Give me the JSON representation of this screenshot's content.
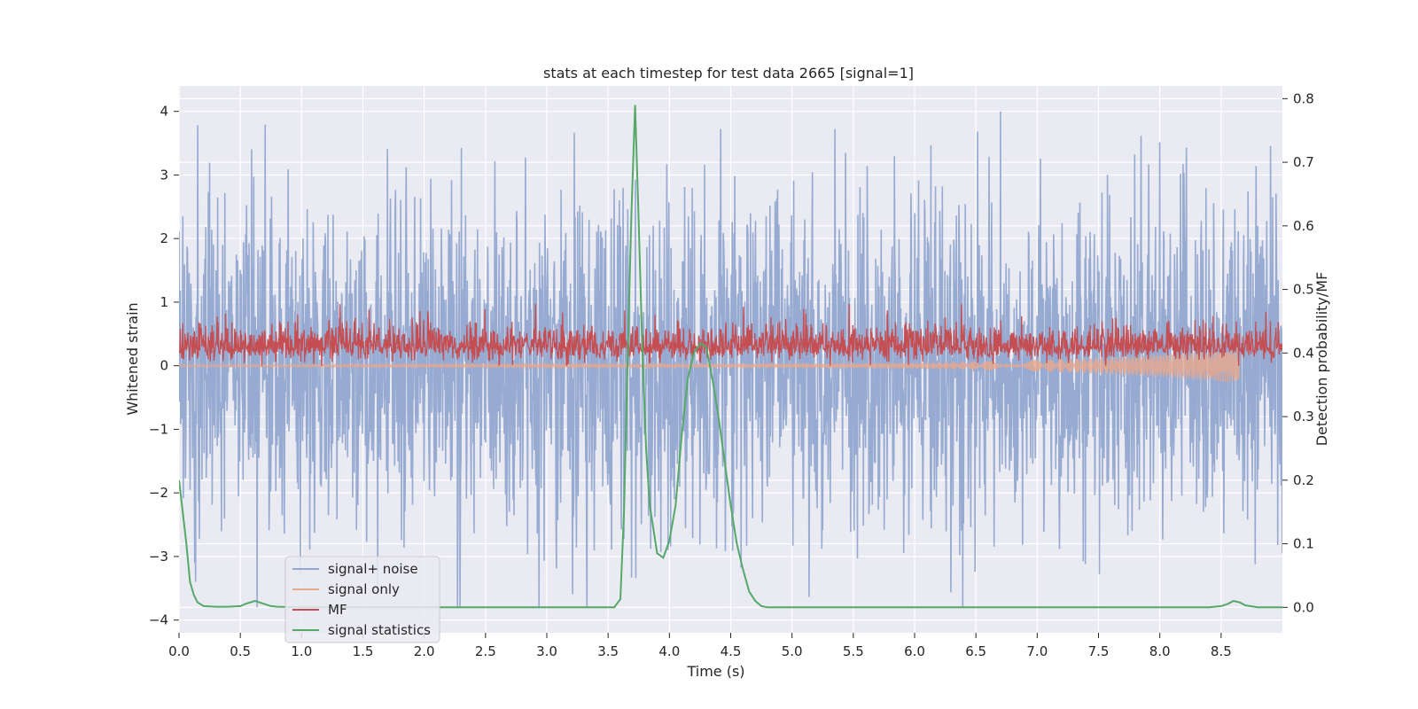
{
  "chart_data": {
    "type": "line",
    "title": "stats at each timestep for test data 2665 [signal=1]",
    "xlabel": "Time (s)",
    "ylabel": "Whitened strain",
    "y2label": "Detection probability/MF",
    "xlim": [
      0.0,
      9.0
    ],
    "ylim": [
      -4.2,
      4.4
    ],
    "y2lim": [
      -0.04,
      0.82
    ],
    "xticks": [
      "0.0",
      "0.5",
      "1.0",
      "1.5",
      "2.0",
      "2.5",
      "3.0",
      "3.5",
      "4.0",
      "4.5",
      "5.0",
      "5.5",
      "6.0",
      "6.5",
      "7.0",
      "7.5",
      "8.0",
      "8.5"
    ],
    "xtick_values": [
      0.0,
      0.5,
      1.0,
      1.5,
      2.0,
      2.5,
      3.0,
      3.5,
      4.0,
      4.5,
      5.0,
      5.5,
      6.0,
      6.5,
      7.0,
      7.5,
      8.0,
      8.5
    ],
    "yticks": [
      "−4",
      "−3",
      "−2",
      "−1",
      "0",
      "1",
      "2",
      "3",
      "4"
    ],
    "ytick_values": [
      -4,
      -3,
      -2,
      -1,
      0,
      1,
      2,
      3,
      4
    ],
    "y2ticks": [
      "0.0",
      "0.1",
      "0.2",
      "0.3",
      "0.4",
      "0.5",
      "0.6",
      "0.7",
      "0.8"
    ],
    "y2tick_values": [
      0.0,
      0.1,
      0.2,
      0.3,
      0.4,
      0.5,
      0.6,
      0.7,
      0.8
    ],
    "legend": {
      "location": "lower-left",
      "entries": [
        "signal+ noise",
        "signal only",
        "MF",
        "signal statistics"
      ]
    },
    "colors": {
      "signal_noise": "#92a6cf",
      "signal_only": "#e8a88c",
      "mf": "#c44e52",
      "stats": "#55a868",
      "plot_bg": "#eaeaf2",
      "grid": "#ffffff"
    },
    "series": [
      {
        "name": "signal+ noise",
        "axis": "left",
        "kind": "noise",
        "sigma": 1.0,
        "x_range": [
          0.0,
          9.0
        ],
        "y_range": [
          -3.8,
          4.0
        ]
      },
      {
        "name": "signal only",
        "axis": "left",
        "kind": "chirp",
        "x_range": [
          0.0,
          8.65
        ],
        "peak_amplitude": 0.25
      },
      {
        "name": "MF",
        "axis": "left",
        "kind": "noise",
        "center": 0.3,
        "x_range": [
          0.0,
          9.0
        ],
        "y_range": [
          0.0,
          0.97
        ]
      },
      {
        "name": "signal statistics",
        "axis": "right",
        "kind": "line",
        "x": [
          0.0,
          0.03,
          0.06,
          0.09,
          0.12,
          0.15,
          0.2,
          0.3,
          0.4,
          0.5,
          0.55,
          0.62,
          0.7,
          0.75,
          0.8,
          1.0,
          1.5,
          2.0,
          2.5,
          3.0,
          3.4,
          3.5,
          3.55,
          3.6,
          3.63,
          3.66,
          3.69,
          3.72,
          3.75,
          3.78,
          3.81,
          3.84,
          3.9,
          3.95,
          4.0,
          4.05,
          4.1,
          4.15,
          4.2,
          4.25,
          4.3,
          4.35,
          4.4,
          4.45,
          4.5,
          4.55,
          4.6,
          4.65,
          4.7,
          4.75,
          4.8,
          5.0,
          5.5,
          6.0,
          6.5,
          7.0,
          7.5,
          8.0,
          8.4,
          8.5,
          8.55,
          8.6,
          8.65,
          8.7,
          8.8,
          9.0
        ],
        "y": [
          0.2,
          0.15,
          0.1,
          0.04,
          0.02,
          0.008,
          0.002,
          0.001,
          0.001,
          0.002,
          0.006,
          0.01,
          0.005,
          0.002,
          0.001,
          0.0,
          0.0,
          0.0,
          0.0,
          0.0,
          0.0,
          0.0,
          0.0,
          0.013,
          0.15,
          0.4,
          0.62,
          0.79,
          0.6,
          0.4,
          0.25,
          0.16,
          0.085,
          0.078,
          0.105,
          0.16,
          0.27,
          0.36,
          0.4,
          0.415,
          0.41,
          0.36,
          0.3,
          0.23,
          0.16,
          0.1,
          0.06,
          0.025,
          0.01,
          0.002,
          0.0,
          0.0,
          0.0,
          0.0,
          0.0,
          0.0,
          0.0,
          0.0,
          0.0,
          0.002,
          0.005,
          0.01,
          0.008,
          0.003,
          0.0,
          0.0
        ]
      }
    ]
  }
}
